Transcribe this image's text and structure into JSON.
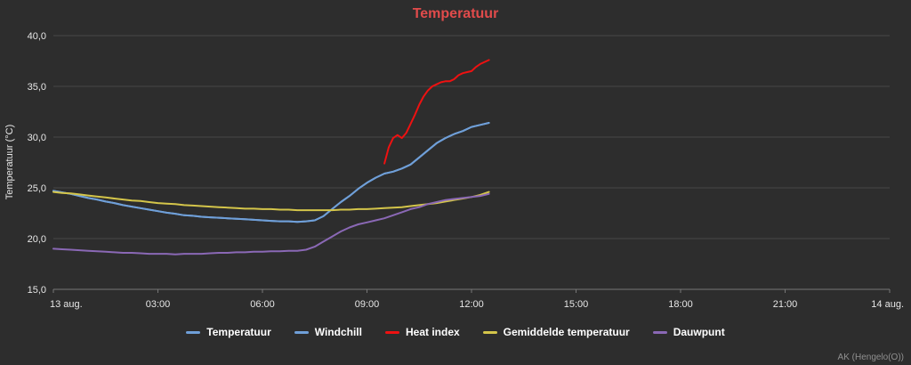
{
  "title": "Temperatuur",
  "footer": "AK (Hengelo(O))",
  "colors": {
    "background": "#2d2d2d",
    "title": "#e14b4b",
    "grid": "#474747",
    "axis": "#777777",
    "tick_text": "#e6e6e6",
    "footer_text": "#909090",
    "legend_text": "#ffffff"
  },
  "chart_data": {
    "type": "line",
    "title": "Temperatuur",
    "xlabel": "",
    "ylabel": "Temperatuur (°C)",
    "ylim": [
      15,
      40
    ],
    "xlim_hours": [
      0,
      24
    ],
    "grid": "horizontal",
    "legend_position": "bottom",
    "y_ticks": [
      {
        "value": 40,
        "label": "40,0"
      },
      {
        "value": 35,
        "label": "35,0"
      },
      {
        "value": 30,
        "label": "30,0"
      },
      {
        "value": 25,
        "label": "25,0"
      },
      {
        "value": 20,
        "label": "20,0"
      },
      {
        "value": 15,
        "label": "15,0"
      }
    ],
    "x_ticks": [
      {
        "hour": 0,
        "label": "13 aug."
      },
      {
        "hour": 3,
        "label": "03:00"
      },
      {
        "hour": 6,
        "label": "06:00"
      },
      {
        "hour": 9,
        "label": "09:00"
      },
      {
        "hour": 12,
        "label": "12:00"
      },
      {
        "hour": 15,
        "label": "15:00"
      },
      {
        "hour": 18,
        "label": "18:00"
      },
      {
        "hour": 21,
        "label": "21:00"
      },
      {
        "hour": 24,
        "label": "14 aug."
      }
    ],
    "series": [
      {
        "name": "Temperatuur",
        "color": "#6f9fd8",
        "x_start": 0,
        "x_step": 0.25,
        "values": [
          24.7,
          24.55,
          24.4,
          24.2,
          24.0,
          23.85,
          23.65,
          23.5,
          23.3,
          23.15,
          23.0,
          22.85,
          22.7,
          22.55,
          22.45,
          22.3,
          22.25,
          22.15,
          22.1,
          22.05,
          22.0,
          21.95,
          21.9,
          21.85,
          21.8,
          21.75,
          21.7,
          21.7,
          21.65,
          21.7,
          21.8,
          22.2,
          22.9,
          23.6,
          24.2,
          24.9,
          25.5,
          26.0,
          26.4,
          26.6,
          26.9,
          27.3,
          28.0,
          28.7,
          29.4,
          29.9,
          30.3,
          30.6,
          31.0,
          31.2,
          31.4
        ]
      },
      {
        "name": "Windchill",
        "color": "#6f9fd8",
        "x_start": 0,
        "x_step": 0.25,
        "values": [
          24.7,
          24.55,
          24.4,
          24.2,
          24.0,
          23.85,
          23.65,
          23.5,
          23.3,
          23.15,
          23.0,
          22.85,
          22.7,
          22.55,
          22.45,
          22.3,
          22.25,
          22.15,
          22.1,
          22.05,
          22.0,
          21.95,
          21.9,
          21.85,
          21.8,
          21.75,
          21.7,
          21.7,
          21.65,
          21.7,
          21.8,
          22.2,
          22.9,
          23.6,
          24.2,
          24.9,
          25.5,
          26.0,
          26.4,
          26.6,
          26.9,
          27.3,
          28.0,
          28.7,
          29.4,
          29.9,
          30.3,
          30.6,
          31.0,
          31.2,
          31.4
        ]
      },
      {
        "name": "Heat index",
        "color": "#ee1111",
        "x_start": 9.5,
        "x_step": 0.125,
        "values": [
          27.4,
          29.0,
          29.9,
          30.2,
          29.9,
          30.4,
          31.3,
          32.2,
          33.2,
          34.0,
          34.6,
          35.0,
          35.2,
          35.4,
          35.5,
          35.5,
          35.7,
          36.1,
          36.3,
          36.4,
          36.5,
          36.9,
          37.2,
          37.4,
          37.6
        ]
      },
      {
        "name": "Gemiddelde temperatuur",
        "color": "#d4c54a",
        "x_start": 0,
        "x_step": 0.25,
        "values": [
          24.6,
          24.5,
          24.45,
          24.35,
          24.25,
          24.15,
          24.05,
          23.95,
          23.85,
          23.75,
          23.7,
          23.6,
          23.5,
          23.45,
          23.4,
          23.3,
          23.25,
          23.2,
          23.15,
          23.1,
          23.05,
          23.0,
          22.95,
          22.95,
          22.9,
          22.9,
          22.85,
          22.85,
          22.8,
          22.8,
          22.8,
          22.8,
          22.8,
          22.85,
          22.85,
          22.9,
          22.9,
          22.95,
          23.0,
          23.05,
          23.1,
          23.2,
          23.3,
          23.4,
          23.5,
          23.65,
          23.8,
          23.95,
          24.1,
          24.3,
          24.6
        ]
      },
      {
        "name": "Dauwpunt",
        "color": "#8a68b5",
        "x_start": 0,
        "x_step": 0.25,
        "values": [
          19.0,
          18.95,
          18.9,
          18.85,
          18.8,
          18.75,
          18.7,
          18.65,
          18.6,
          18.6,
          18.55,
          18.5,
          18.5,
          18.5,
          18.45,
          18.5,
          18.5,
          18.5,
          18.55,
          18.6,
          18.6,
          18.65,
          18.65,
          18.7,
          18.7,
          18.75,
          18.75,
          18.8,
          18.8,
          18.9,
          19.2,
          19.7,
          20.2,
          20.7,
          21.1,
          21.4,
          21.6,
          21.8,
          22.0,
          22.3,
          22.6,
          22.9,
          23.1,
          23.4,
          23.6,
          23.8,
          23.9,
          24.0,
          24.1,
          24.2,
          24.4
        ]
      }
    ]
  }
}
